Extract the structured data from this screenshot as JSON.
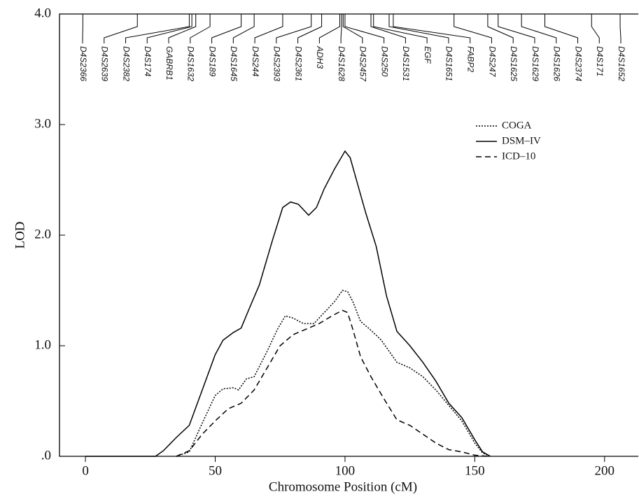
{
  "chart_data": {
    "type": "line",
    "x_label": "Chromosome Position (cM)",
    "y_label": "LOD",
    "xlim": [
      -10,
      213
    ],
    "ylim": [
      0,
      4
    ],
    "xticks": [
      0,
      50,
      100,
      150,
      200
    ],
    "yticks": [
      {
        "value": 0,
        "label": ".0"
      },
      {
        "value": 1,
        "label": "1.0"
      },
      {
        "value": 2,
        "label": "2.0"
      },
      {
        "value": 3,
        "label": "3.0"
      },
      {
        "value": 4,
        "label": "4.0"
      }
    ],
    "markers": [
      {
        "name": "D4S2366",
        "position": -1
      },
      {
        "name": "D4S2639",
        "position": 20
      },
      {
        "name": "D4S2382",
        "position": 40
      },
      {
        "name": "D4S174",
        "position": 41
      },
      {
        "name": "GABRB1",
        "position": 42.5
      },
      {
        "name": "D4S1632",
        "position": 48
      },
      {
        "name": "D4S189",
        "position": 60
      },
      {
        "name": "D4S1645",
        "position": 65
      },
      {
        "name": "D4S244",
        "position": 76
      },
      {
        "name": "D4S2393",
        "position": 87
      },
      {
        "name": "D4S2361",
        "position": 91
      },
      {
        "name": "ADH3",
        "position": 98
      },
      {
        "name": "D4S1628",
        "position": 98.7
      },
      {
        "name": "D4S2457",
        "position": 99.3
      },
      {
        "name": "D4S250",
        "position": 100
      },
      {
        "name": "D4S1531",
        "position": 110
      },
      {
        "name": "EGF",
        "position": 111
      },
      {
        "name": "D4S1651",
        "position": 117
      },
      {
        "name": "FABP2",
        "position": 118.6
      },
      {
        "name": "D4S247",
        "position": 142
      },
      {
        "name": "D4S1625",
        "position": 155
      },
      {
        "name": "D4S1629",
        "position": 159
      },
      {
        "name": "D4S1626",
        "position": 168
      },
      {
        "name": "D4S2374",
        "position": 177
      },
      {
        "name": "D4S171",
        "position": 195
      },
      {
        "name": "D4S1652",
        "position": 206
      }
    ],
    "series": [
      {
        "name": "COGA",
        "color": "#000000",
        "style": "dotted",
        "x": [
          35,
          40,
          45,
          50,
          53,
          57,
          59,
          62,
          65,
          70,
          74,
          77,
          80,
          84,
          88,
          92,
          96,
          99,
          101,
          103,
          106,
          110,
          114,
          120,
          125,
          130,
          135,
          140,
          145,
          150,
          153,
          156
        ],
        "values": [
          0,
          0.04,
          0.3,
          0.55,
          0.61,
          0.62,
          0.6,
          0.7,
          0.72,
          0.95,
          1.15,
          1.27,
          1.25,
          1.2,
          1.2,
          1.3,
          1.4,
          1.5,
          1.49,
          1.4,
          1.22,
          1.14,
          1.05,
          0.85,
          0.8,
          0.72,
          0.6,
          0.46,
          0.32,
          0.12,
          0.03,
          0
        ]
      },
      {
        "name": "DSM–IV",
        "color": "#000000",
        "style": "solid",
        "x": [
          0,
          27,
          30,
          35,
          40,
          45,
          50,
          53,
          57,
          60,
          63,
          67,
          72,
          76,
          79,
          82,
          86,
          89,
          92,
          96,
          100,
          102,
          105,
          108,
          112,
          116,
          120,
          125,
          130,
          135,
          140,
          145,
          150,
          153,
          156
        ],
        "values": [
          0,
          0,
          0.05,
          0.17,
          0.28,
          0.6,
          0.92,
          1.05,
          1.12,
          1.16,
          1.33,
          1.55,
          1.95,
          2.25,
          2.3,
          2.28,
          2.18,
          2.25,
          2.42,
          2.6,
          2.76,
          2.7,
          2.45,
          2.2,
          1.9,
          1.45,
          1.13,
          1.0,
          0.85,
          0.68,
          0.48,
          0.35,
          0.15,
          0.04,
          0
        ]
      },
      {
        "name": "ICD–10",
        "color": "#000000",
        "style": "dashed",
        "x": [
          35,
          40,
          45,
          50,
          55,
          60,
          65,
          70,
          75,
          80,
          85,
          90,
          95,
          99,
          101,
          103,
          106,
          110,
          115,
          120,
          125,
          130,
          135,
          140,
          145,
          150,
          155
        ],
        "values": [
          0,
          0.05,
          0.2,
          0.32,
          0.43,
          0.48,
          0.6,
          0.8,
          1.0,
          1.1,
          1.15,
          1.2,
          1.27,
          1.32,
          1.3,
          1.15,
          0.9,
          0.72,
          0.52,
          0.33,
          0.28,
          0.2,
          0.12,
          0.06,
          0.04,
          0.01,
          0
        ]
      }
    ]
  }
}
